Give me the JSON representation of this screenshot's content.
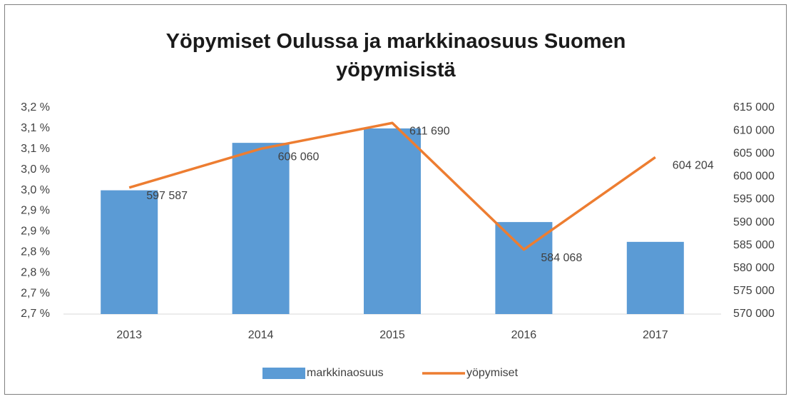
{
  "chart_data": {
    "type": "bar-line",
    "title": "Yöpymiset Oulussa ja markkinaosuus Suomen yöpymisistä",
    "categories": [
      "2013",
      "2014",
      "2015",
      "2016",
      "2017"
    ],
    "series": [
      {
        "name": "markkinaosuus",
        "color": "#5b9bd5",
        "type": "bar",
        "axis": "y",
        "values": [
          2.95,
          3.065,
          3.1,
          2.873,
          2.825
        ]
      },
      {
        "name": "yöpymiset",
        "color": "#ed7d31",
        "type": "line",
        "axis": "y2",
        "values": [
          597587,
          606060,
          611690,
          584068,
          604204
        ],
        "value_labels": [
          "597 587",
          "606 060",
          "611 690",
          "584 068",
          "604 204"
        ]
      }
    ],
    "ylim": [
      2.65,
      3.15
    ],
    "yticks": [
      {
        "value": 2.65,
        "label": "2,7 %"
      },
      {
        "value": 2.7,
        "label": "2,7 %"
      },
      {
        "value": 2.75,
        "label": "2,8 %"
      },
      {
        "value": 2.8,
        "label": "2,8 %"
      },
      {
        "value": 2.85,
        "label": "2,9 %"
      },
      {
        "value": 2.9,
        "label": "2,9 %"
      },
      {
        "value": 2.95,
        "label": "3,0 %"
      },
      {
        "value": 3.0,
        "label": "3,0 %"
      },
      {
        "value": 3.05,
        "label": "3,1 %"
      },
      {
        "value": 3.1,
        "label": "3,1 %"
      },
      {
        "value": 3.15,
        "label": "3,2 %"
      }
    ],
    "y2lim": [
      570000,
      615000
    ],
    "y2ticks": [
      {
        "value": 570000,
        "label": "570 000"
      },
      {
        "value": 575000,
        "label": "575 000"
      },
      {
        "value": 580000,
        "label": "580 000"
      },
      {
        "value": 585000,
        "label": "585 000"
      },
      {
        "value": 590000,
        "label": "590 000"
      },
      {
        "value": 595000,
        "label": "595 000"
      },
      {
        "value": 600000,
        "label": "600 000"
      },
      {
        "value": 605000,
        "label": "605 000"
      },
      {
        "value": 610000,
        "label": "610 000"
      },
      {
        "value": 615000,
        "label": "615 000"
      }
    ],
    "legend": "bottom",
    "grid": false
  }
}
